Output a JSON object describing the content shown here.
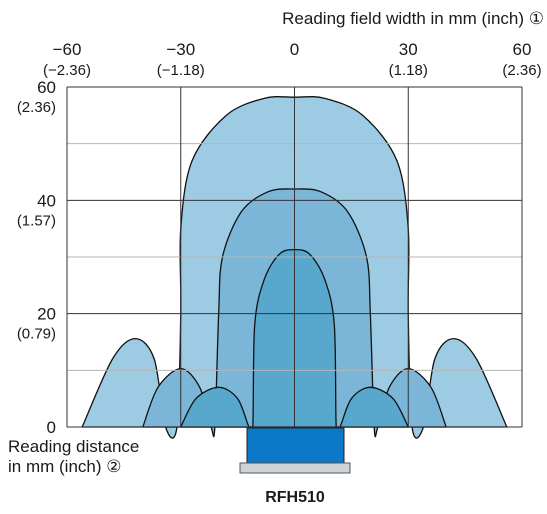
{
  "chart_data": {
    "type": "area",
    "x_title": "Reading field width in mm (inch) ①",
    "y_title_line1": "Reading distance",
    "y_title_line2": "in mm (inch) ②",
    "device_label": "RFH510",
    "xlim": [
      -60,
      60
    ],
    "ylim": [
      0,
      60
    ],
    "x_ticks": [
      {
        "value": -60,
        "label": "−60",
        "sublabel": "(−2.36)"
      },
      {
        "value": -30,
        "label": "−30",
        "sublabel": "(−1.18)"
      },
      {
        "value": 0,
        "label": "0",
        "sublabel": ""
      },
      {
        "value": 30,
        "label": "30",
        "sublabel": "(1.18)"
      },
      {
        "value": 60,
        "label": "60",
        "sublabel": "(2.36)"
      }
    ],
    "y_ticks": [
      {
        "value": 0,
        "label": "0",
        "sublabel": ""
      },
      {
        "value": 20,
        "label": "20",
        "sublabel": "(0.79)"
      },
      {
        "value": 40,
        "label": "40",
        "sublabel": "(1.57)"
      },
      {
        "value": 60,
        "label": "60",
        "sublabel": "(2.36)"
      }
    ],
    "minor_gridlines_y": [
      10,
      30,
      50
    ],
    "colors": {
      "outer": "#9ecbe4",
      "middle": "#7bb6d8",
      "inner": "#57a8cc",
      "device_top": "#0b78c8",
      "device_base": "#cfd3d6",
      "grid": "#333333",
      "minor_grid": "#b5b5b5"
    },
    "series": [
      {
        "level": "outer",
        "points": [
          [
            -56,
            0
          ],
          [
            -48,
            12
          ],
          [
            -42,
            15.6
          ],
          [
            -37,
            12
          ],
          [
            -34,
            0
          ],
          [
            -31,
            0
          ],
          [
            -30,
            20
          ],
          [
            -30,
            35
          ],
          [
            -27,
            47
          ],
          [
            -18,
            55
          ],
          [
            -8,
            58
          ],
          [
            0,
            58.2
          ],
          [
            8,
            58
          ],
          [
            18,
            55
          ],
          [
            27,
            47
          ],
          [
            30,
            35
          ],
          [
            30,
            20
          ],
          [
            31,
            0
          ],
          [
            34,
            0
          ],
          [
            37,
            12
          ],
          [
            42,
            15.6
          ],
          [
            48,
            12
          ],
          [
            56,
            0
          ]
        ]
      },
      {
        "level": "middle",
        "points": [
          [
            -40,
            0
          ],
          [
            -36,
            7
          ],
          [
            -30,
            10.3
          ],
          [
            -25,
            7
          ],
          [
            -22,
            0
          ],
          [
            -21,
            0
          ],
          [
            -20,
            20
          ],
          [
            -19,
            30
          ],
          [
            -14,
            38
          ],
          [
            -7,
            41.5
          ],
          [
            0,
            42
          ],
          [
            7,
            41.5
          ],
          [
            14,
            38
          ],
          [
            19,
            30
          ],
          [
            20,
            20
          ],
          [
            21,
            0
          ],
          [
            22,
            0
          ],
          [
            25,
            7
          ],
          [
            30,
            10.3
          ],
          [
            36,
            7
          ],
          [
            40,
            0
          ]
        ]
      },
      {
        "level": "inner",
        "points": [
          [
            -30,
            0
          ],
          [
            -26,
            5
          ],
          [
            -20,
            7
          ],
          [
            -15,
            5
          ],
          [
            -12,
            0
          ],
          [
            -11,
            0
          ],
          [
            -10.5,
            18
          ],
          [
            -8,
            26
          ],
          [
            -4,
            30.5
          ],
          [
            0,
            31.3
          ],
          [
            4,
            30.5
          ],
          [
            8,
            26
          ],
          [
            10.5,
            18
          ],
          [
            11,
            0
          ],
          [
            12,
            0
          ],
          [
            15,
            5
          ],
          [
            20,
            7
          ],
          [
            26,
            5
          ],
          [
            30,
            0
          ]
        ]
      }
    ]
  }
}
